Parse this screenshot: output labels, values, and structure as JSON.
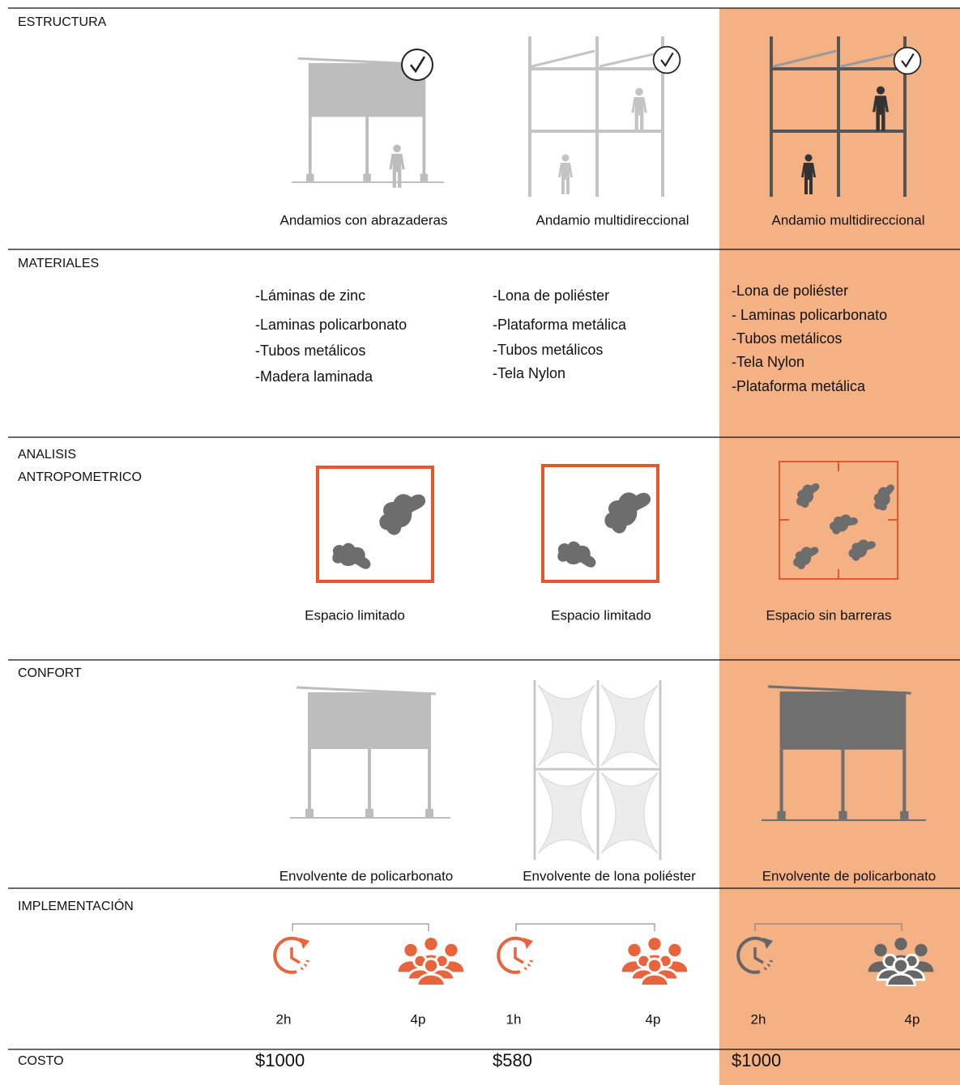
{
  "estructura": {
    "label": "ESTRUCTURA",
    "captions": [
      "Andamios con abrazaderas",
      "Andamio multidireccional",
      "Andamio multidireccional"
    ]
  },
  "materiales": {
    "label": "MATERIALES",
    "lists": [
      [
        "-Láminas de zinc",
        "-Laminas policarbonato",
        "-Tubos metálicos",
        "-Madera laminada"
      ],
      [
        "-Lona de poliéster",
        "-Plataforma metálica",
        "-Tubos metálicos",
        "-Tela Nylon"
      ],
      [
        "-Lona de poliéster",
        "- Laminas policarbonato",
        "-Tubos metálicos",
        "-Tela Nylon",
        "-Plataforma metálica"
      ]
    ]
  },
  "analisis": {
    "label_lines": [
      "ANALISIS",
      "ANTROPOMETRICO"
    ],
    "captions": [
      "Espacio limitado",
      "Espacio limitado",
      "Espacio sin barreras"
    ]
  },
  "confort": {
    "label": "CONFORT",
    "captions": [
      "Envolvente de policarbonato",
      "Envolvente de lona poliéster",
      "Envolvente de policarbonato"
    ]
  },
  "implementacion": {
    "label": "IMPLEMENTACIÓN",
    "times": [
      "2h",
      "1h",
      "2h"
    ],
    "people": [
      "4p",
      "4p",
      "4p"
    ]
  },
  "costo": {
    "label": "COSTO",
    "values": [
      "$1000",
      "$580",
      "$1000"
    ]
  }
}
